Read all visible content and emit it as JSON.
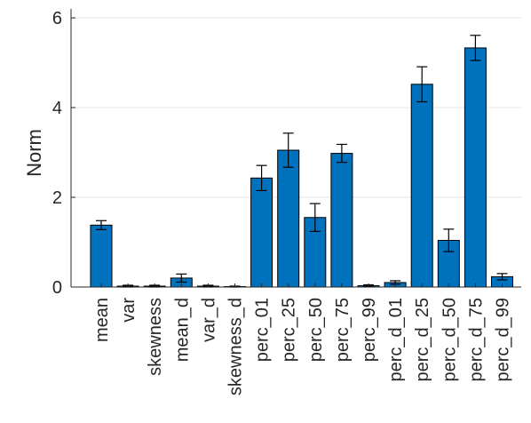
{
  "chart_data": {
    "type": "bar",
    "title": "",
    "xlabel": "",
    "ylabel": "Norm",
    "ylim": [
      0,
      6.2
    ],
    "yticks": [
      0,
      2,
      4,
      6
    ],
    "grid": true,
    "bar_color": "#0072bd",
    "categories": [
      "mean",
      "var",
      "skewness",
      "mean_d",
      "var_d",
      "skewness_d",
      "perc_01",
      "perc_25",
      "perc_50",
      "perc_75",
      "perc_99",
      "perc_d_01",
      "perc_d_25",
      "perc_d_50",
      "perc_d_75",
      "perc_d_99"
    ],
    "values": [
      1.38,
      0.02,
      0.02,
      0.2,
      0.02,
      0.01,
      2.43,
      3.05,
      1.55,
      2.98,
      0.03,
      0.1,
      4.52,
      1.04,
      5.33,
      0.23
    ],
    "error": [
      0.1,
      0.02,
      0.02,
      0.09,
      0.02,
      0.01,
      0.28,
      0.38,
      0.31,
      0.2,
      0.02,
      0.04,
      0.39,
      0.25,
      0.28,
      0.07
    ]
  }
}
